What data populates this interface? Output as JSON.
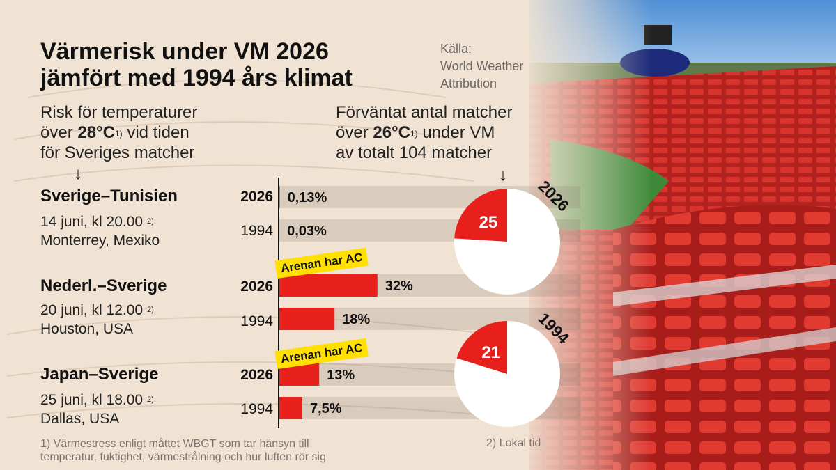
{
  "title_lines": [
    "Värmerisk under VM 2026",
    "jämfört med 1994 års klimat"
  ],
  "source": {
    "label": "Källa:",
    "lines": [
      "World Weather",
      "Attribution"
    ]
  },
  "left_header": {
    "line1": "Risk för temperaturer",
    "line2_pre": "över ",
    "line2_bold": "28°C",
    "line2_sup": "1)",
    "line2_post": " vid tiden",
    "line3": "för Sveriges matcher",
    "arrow": "↓"
  },
  "right_header": {
    "line1": "Förväntat antal matcher",
    "line2_pre": "över ",
    "line2_bold": "26°C",
    "line2_sup": "1)",
    "line2_post": " under VM",
    "line3": "av totalt 104 matcher",
    "arrow": "↓"
  },
  "matches": [
    {
      "name": "Sverige–Tunisien",
      "date": "14 juni, kl 20.00",
      "date_sup": "2)",
      "place": "Monterrey, Mexiko",
      "badge": ""
    },
    {
      "name": "Nederl.–Sverige",
      "date": "20 juni, kl 12.00",
      "date_sup": "2)",
      "place": "Houston, USA",
      "badge": "Arenan har AC"
    },
    {
      "name": "Japan–Sverige",
      "date": "25 juni, kl 18.00",
      "date_sup": "2)",
      "place": "Dallas, USA",
      "badge": "Arenan har AC"
    }
  ],
  "footnotes": {
    "note1": [
      "1) Värmestress enligt måttet WBGT som tar hänsyn till",
      "temperatur, fuktighet, värmestrålning och hur luften rör sig"
    ],
    "note2": "2) Lokal tid"
  },
  "chart_data": [
    {
      "type": "bar",
      "orientation": "horizontal",
      "unit": "%",
      "bars": [
        {
          "match": "Sverige–Tunisien",
          "year": "2026",
          "value": 0.13,
          "label": "0,13%"
        },
        {
          "match": "Sverige–Tunisien",
          "year": "1994",
          "value": 0.03,
          "label": "0,03%"
        },
        {
          "match": "Nederl.–Sverige",
          "year": "2026",
          "value": 32,
          "label": "32%"
        },
        {
          "match": "Nederl.–Sverige",
          "year": "1994",
          "value": 18,
          "label": "18%"
        },
        {
          "match": "Japan–Sverige",
          "year": "2026",
          "value": 13,
          "label": "13%"
        },
        {
          "match": "Japan–Sverige",
          "year": "1994",
          "value": 7.5,
          "label": "7,5%"
        }
      ]
    },
    {
      "type": "pie",
      "label": "2026",
      "total": 104,
      "slices": [
        {
          "label": "25",
          "value": 25,
          "color": "#e8201c"
        },
        {
          "label": "",
          "value": 79,
          "color": "#ffffff"
        }
      ]
    },
    {
      "type": "pie",
      "label": "1994",
      "total": 104,
      "slices": [
        {
          "label": "21",
          "value": 21,
          "color": "#e8201c"
        },
        {
          "label": "",
          "value": 83,
          "color": "#ffffff"
        }
      ]
    }
  ],
  "colors": {
    "bar": "#e8201c",
    "highlight_badge": "#ffe000",
    "pie_rest": "#ffffff"
  }
}
